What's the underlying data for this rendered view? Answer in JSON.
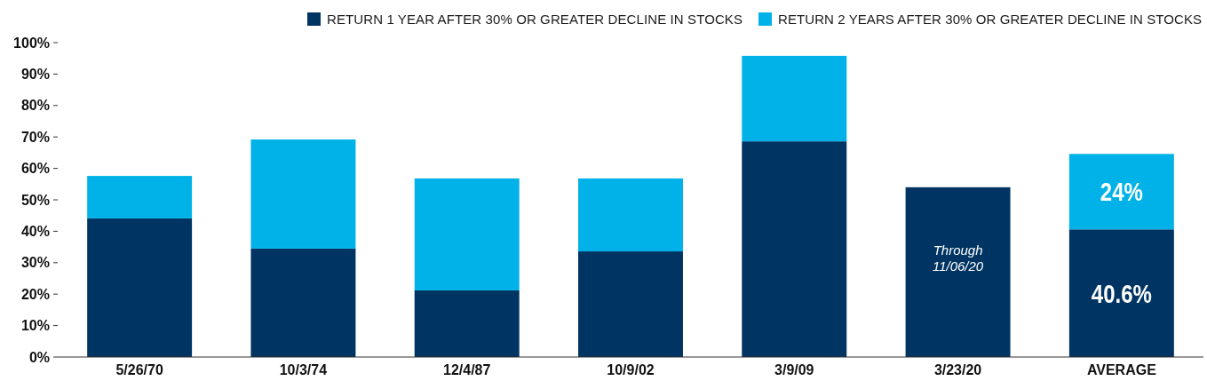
{
  "chart_data": {
    "type": "bar",
    "stacked": true,
    "categories": [
      "5/26/70",
      "10/3/74",
      "12/4/87",
      "10/9/02",
      "3/9/09",
      "3/23/20",
      "AVERAGE"
    ],
    "series": [
      {
        "name": "RETURN 1 YEAR AFTER 30% OR GREATER DECLINE IN STOCKS",
        "color": "#003462",
        "values": [
          44.1,
          34.5,
          21.2,
          33.6,
          68.6,
          54.0,
          40.6
        ],
        "value_labels": [
          null,
          null,
          null,
          null,
          null,
          null,
          "40.6%"
        ]
      },
      {
        "name": "RETURN 2 YEARS AFTER 30% OR GREATER DECLINE IN STOCKS",
        "color": "#00b2e8",
        "values": [
          13.5,
          34.7,
          35.6,
          23.2,
          27.2,
          null,
          24
        ],
        "value_labels": [
          null,
          null,
          null,
          null,
          null,
          null,
          "24%"
        ]
      }
    ],
    "ylim": [
      0,
      100
    ],
    "yticks": [
      {
        "value": 0,
        "label": "0%"
      },
      {
        "value": 10,
        "label": "10%"
      },
      {
        "value": 20,
        "label": "20%"
      },
      {
        "value": 30,
        "label": "30%"
      },
      {
        "value": 40,
        "label": "40%"
      },
      {
        "value": 50,
        "label": "50%"
      },
      {
        "value": 60,
        "label": "60%"
      },
      {
        "value": 70,
        "label": "70%"
      },
      {
        "value": 80,
        "label": "80%"
      },
      {
        "value": 90,
        "label": "90%"
      },
      {
        "value": 100,
        "label": "100%"
      }
    ],
    "legend": "top right",
    "annotations": [
      "Through\n11/06/20"
    ]
  }
}
